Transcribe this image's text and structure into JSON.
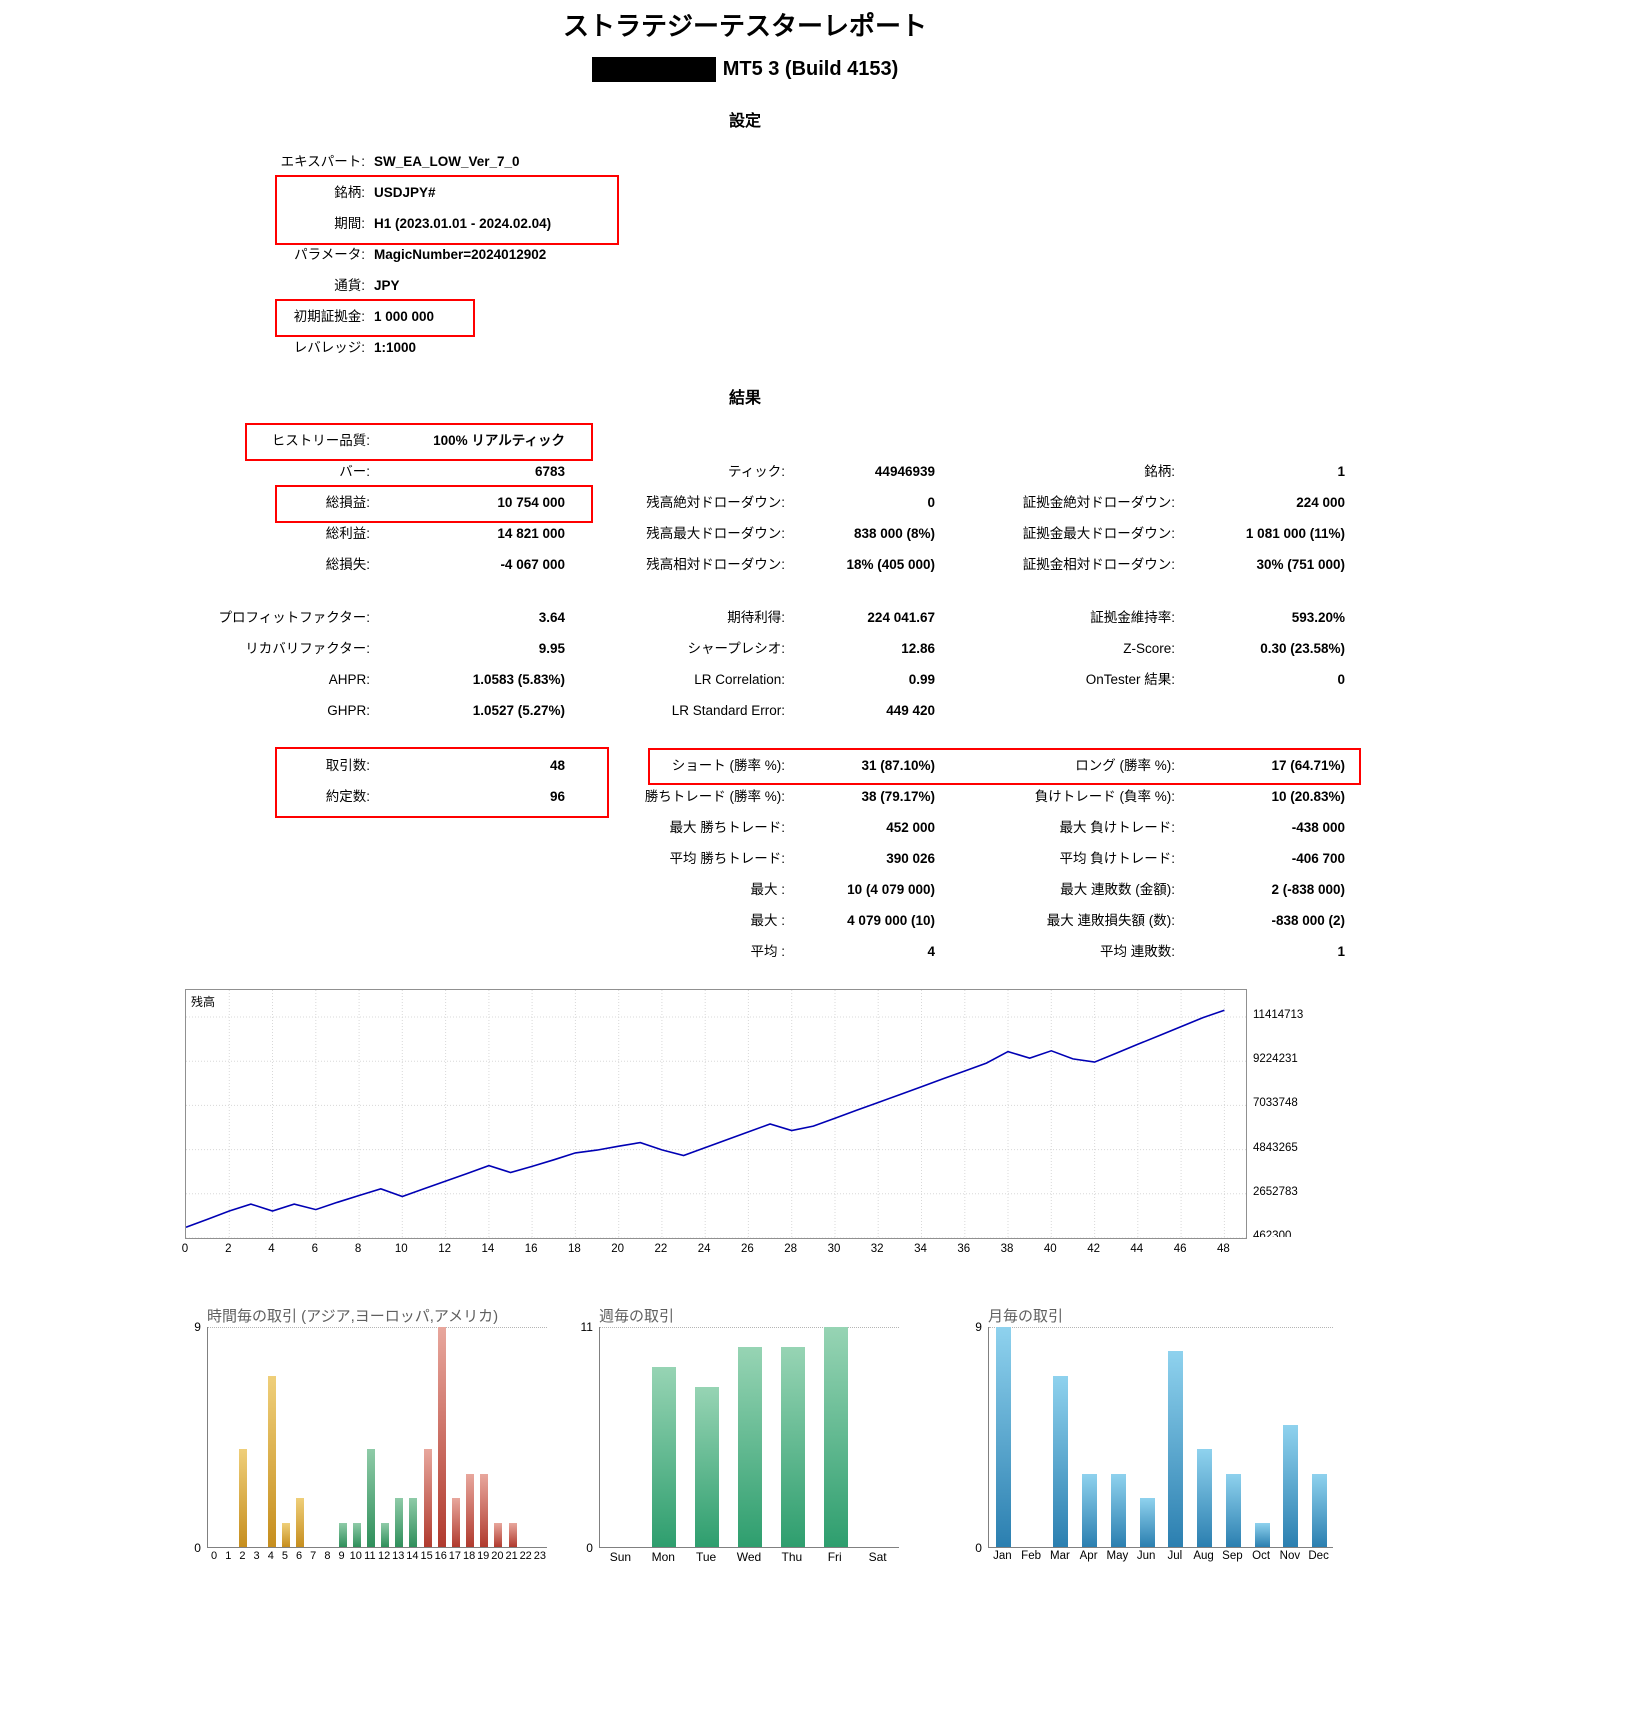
{
  "report": {
    "title": "ストラテジーテスターレポート",
    "terminal_name": "MT5 3 (Build 4153)",
    "settings_heading": "設定",
    "results_heading": "結果"
  },
  "highlight_color": "#FF0000",
  "settings": {
    "rows": [
      {
        "label": "エキスパート:",
        "value": "SW_EA_LOW_Ver_7_0"
      },
      {
        "label": "銘柄:",
        "value": "USDJPY#"
      },
      {
        "label": "期間:",
        "value": "H1 (2023.01.01 - 2024.02.04)"
      },
      {
        "label": "パラメータ:",
        "value": "MagicNumber=2024012902"
      },
      {
        "label": "通貨:",
        "value": "JPY"
      },
      {
        "label": "初期証拠金:",
        "value": "1 000 000"
      },
      {
        "label": "レバレッジ:",
        "value": "1:1000"
      }
    ]
  },
  "results": {
    "sections": [
      {
        "rows": [
          [
            {
              "label": "ヒストリー品質:",
              "value": "100% リアルティック"
            },
            null,
            null
          ],
          [
            {
              "label": "バー:",
              "value": "6783"
            },
            {
              "label": "ティック:",
              "value": "44946939"
            },
            {
              "label": "銘柄:",
              "value": "1"
            }
          ],
          [
            {
              "label": "総損益:",
              "value": "10 754 000"
            },
            {
              "label": "残高絶対ドローダウン:",
              "value": "0"
            },
            {
              "label": "証拠金絶対ドローダウン:",
              "value": "224 000"
            }
          ],
          [
            {
              "label": "総利益:",
              "value": "14 821 000"
            },
            {
              "label": "残高最大ドローダウン:",
              "value": "838 000 (8%)"
            },
            {
              "label": "証拠金最大ドローダウン:",
              "value": "1 081 000 (11%)"
            }
          ],
          [
            {
              "label": "総損失:",
              "value": "-4 067 000"
            },
            {
              "label": "残高相対ドローダウン:",
              "value": "18% (405 000)"
            },
            {
              "label": "証拠金相対ドローダウン:",
              "value": "30% (751 000)"
            }
          ]
        ]
      },
      {
        "rows": [
          [
            {
              "label": "プロフィットファクター:",
              "value": "3.64"
            },
            {
              "label": "期待利得:",
              "value": "224 041.67"
            },
            {
              "label": "証拠金維持率:",
              "value": "593.20%"
            }
          ],
          [
            {
              "label": "リカバリファクター:",
              "value": "9.95"
            },
            {
              "label": "シャープレシオ:",
              "value": "12.86"
            },
            {
              "label": "Z-Score:",
              "value": "0.30 (23.58%)"
            }
          ],
          [
            {
              "label": "AHPR:",
              "value": "1.0583 (5.83%)"
            },
            {
              "label": "LR Correlation:",
              "value": "0.99"
            },
            {
              "label": "OnTester 結果:",
              "value": "0"
            }
          ],
          [
            {
              "label": "GHPR:",
              "value": "1.0527 (5.27%)"
            },
            {
              "label": "LR Standard Error:",
              "value": "449 420"
            },
            null
          ]
        ]
      },
      {
        "rows": [
          [
            {
              "label": "取引数:",
              "value": "48"
            },
            {
              "label": "ショート (勝率 %):",
              "value": "31 (87.10%)"
            },
            {
              "label": "ロング (勝率 %):",
              "value": "17 (64.71%)"
            }
          ],
          [
            {
              "label": "約定数:",
              "value": "96"
            },
            {
              "label": "勝ちトレード (勝率 %):",
              "value": "38 (79.17%)"
            },
            {
              "label": "負けトレード (負率 %):",
              "value": "10 (20.83%)"
            }
          ],
          [
            null,
            {
              "label": "最大 勝ちトレード:",
              "value": "452 000"
            },
            {
              "label": "最大 負けトレード:",
              "value": "-438 000"
            }
          ],
          [
            null,
            {
              "label": "平均 勝ちトレード:",
              "value": "390 026"
            },
            {
              "label": "平均 負けトレード:",
              "value": "-406 700"
            }
          ],
          [
            null,
            {
              "label": "最大 :",
              "value": "10 (4 079 000)"
            },
            {
              "label": "最大 連敗数 (金額):",
              "value": "2 (-838 000)"
            }
          ],
          [
            null,
            {
              "label": "最大 :",
              "value": "4 079 000 (10)"
            },
            {
              "label": "最大 連敗損失額 (数):",
              "value": "-838 000 (2)"
            }
          ],
          [
            null,
            {
              "label": "平均 :",
              "value": "4"
            },
            {
              "label": "平均 連敗数:",
              "value": "1"
            }
          ]
        ]
      }
    ]
  },
  "chart_data": [
    {
      "type": "line",
      "title": "残高",
      "x": [
        0,
        1,
        2,
        3,
        4,
        5,
        6,
        7,
        8,
        9,
        10,
        11,
        12,
        13,
        14,
        15,
        16,
        17,
        18,
        19,
        20,
        21,
        22,
        23,
        24,
        25,
        26,
        27,
        28,
        29,
        30,
        31,
        32,
        33,
        34,
        35,
        36,
        37,
        38,
        39,
        40,
        41,
        42,
        43,
        44,
        45,
        46,
        47,
        48
      ],
      "values": [
        1000000,
        1390000,
        1800000,
        2140000,
        1800000,
        2140000,
        1870000,
        2230000,
        2570000,
        2900000,
        2520000,
        2900000,
        3280000,
        3660000,
        4050000,
        3710000,
        4010000,
        4340000,
        4680000,
        4820000,
        5010000,
        5190000,
        4830000,
        4550000,
        4940000,
        5330000,
        5720000,
        6110000,
        5790000,
        6010000,
        6400000,
        6790000,
        7180000,
        7570000,
        7960000,
        8350000,
        8740000,
        9130000,
        9700000,
        9380000,
        9740000,
        9340000,
        9180000,
        9620000,
        10060000,
        10500000,
        10940000,
        11380000,
        11754000
      ],
      "x_ticks": [
        0,
        2,
        4,
        6,
        8,
        10,
        12,
        14,
        16,
        18,
        20,
        22,
        24,
        26,
        28,
        30,
        32,
        34,
        36,
        38,
        40,
        42,
        44,
        46,
        48
      ],
      "y_ticks": [
        11414713,
        9224231,
        7033748,
        4843265,
        2652783,
        462300
      ],
      "x_range": [
        0,
        49
      ],
      "y_range": [
        462300,
        12753000
      ],
      "line_color": "#0000B4",
      "grid": true,
      "legend_position": "none"
    },
    {
      "type": "bar",
      "title": "時間毎の取引 (アジア,ヨーロッパ,アメリカ)",
      "categories": [
        "0",
        "1",
        "2",
        "3",
        "4",
        "5",
        "6",
        "7",
        "8",
        "9",
        "10",
        "11",
        "12",
        "13",
        "14",
        "15",
        "16",
        "17",
        "18",
        "19",
        "20",
        "21",
        "22",
        "23"
      ],
      "values": [
        0,
        0,
        4,
        0,
        7,
        1,
        2,
        0,
        0,
        1,
        1,
        4,
        1,
        2,
        2,
        4,
        9,
        2,
        3,
        3,
        1,
        1,
        0,
        0
      ],
      "ylim": [
        0,
        9
      ],
      "bar_groups": [
        "asia",
        "asia",
        "asia",
        "asia",
        "asia",
        "asia",
        "asia",
        "asia",
        "europe",
        "europe",
        "europe",
        "europe",
        "europe",
        "europe",
        "europe",
        "america",
        "america",
        "america",
        "america",
        "america",
        "america",
        "america",
        "america",
        "america"
      ],
      "palettes": {
        "asia": [
          "#EFCF7A",
          "#C68E1E"
        ],
        "europe": [
          "#8FCBA8",
          "#2F8F5B"
        ],
        "america": [
          "#E8A79D",
          "#B03A2E"
        ]
      }
    },
    {
      "type": "bar",
      "title": "週毎の取引",
      "categories": [
        "Sun",
        "Mon",
        "Tue",
        "Wed",
        "Thu",
        "Fri",
        "Sat"
      ],
      "values": [
        0,
        9,
        8,
        10,
        10,
        11,
        0
      ],
      "ylim": [
        0,
        11
      ],
      "palettes": {
        "default": [
          "#97D4B4",
          "#2E9E6E"
        ]
      }
    },
    {
      "type": "bar",
      "title": "月毎の取引",
      "categories": [
        "Jan",
        "Feb",
        "Mar",
        "Apr",
        "May",
        "Jun",
        "Jul",
        "Aug",
        "Sep",
        "Oct",
        "Nov",
        "Dec"
      ],
      "values": [
        9,
        0,
        7,
        3,
        3,
        2,
        8,
        4,
        3,
        1,
        5,
        3
      ],
      "ylim": [
        0,
        9
      ],
      "palettes": {
        "default": [
          "#8FD2EE",
          "#2B7FB0"
        ]
      }
    }
  ]
}
